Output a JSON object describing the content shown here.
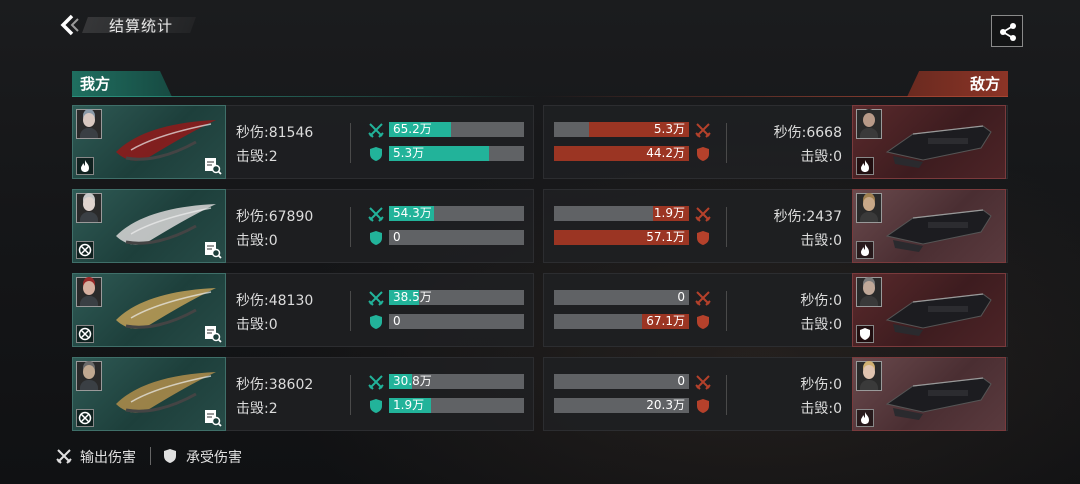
{
  "header": {
    "title": "结算统计"
  },
  "sides": {
    "ours": "我方",
    "enemy": "敌方"
  },
  "labels": {
    "dps_prefix": "秒伤:",
    "kills_prefix": "击毁:"
  },
  "colors": {
    "ally_accent": "#22b39a",
    "enemy_accent": "#9b3523",
    "bar_track": "#606265"
  },
  "rows": [
    {
      "ally": {
        "dps": "81546",
        "kills": "2",
        "dealt": "65.2万",
        "dealt_frac": 0.46,
        "taken": "5.3万",
        "taken_frac": 0.74,
        "portrait": "silver-hair-female",
        "role_icon": "flame-icon",
        "ship_color": "#8c1c1c"
      },
      "enemy": {
        "dps": "6668",
        "kills": "0",
        "dealt": "5.3万",
        "dealt_frac": 0.74,
        "taken": "44.2万",
        "taken_frac": 1.0,
        "portrait": "dark-hair-male",
        "role_icon": "flame-icon"
      }
    },
    {
      "ally": {
        "dps": "67890",
        "kills": "0",
        "dealt": "54.3万",
        "dealt_frac": 0.33,
        "taken": "0",
        "taken_frac": 0.0,
        "portrait": "white-hair-female",
        "role_icon": "target-icon",
        "ship_color": "#cfcfcf"
      },
      "enemy": {
        "dps": "2437",
        "kills": "0",
        "dealt": "1.9万",
        "dealt_frac": 0.27,
        "taken": "57.1万",
        "taken_frac": 1.0,
        "portrait": "blond-male",
        "role_icon": "flame-icon"
      }
    },
    {
      "ally": {
        "dps": "48130",
        "kills": "0",
        "dealt": "38.5万",
        "dealt_frac": 0.22,
        "taken": "0",
        "taken_frac": 0.0,
        "portrait": "red-hair-female",
        "role_icon": "target-icon",
        "ship_color": "#b89a55"
      },
      "enemy": {
        "dps": "0",
        "kills": "0",
        "dealt": "0",
        "dealt_frac": 0.0,
        "taken": "67.1万",
        "taken_frac": 0.35,
        "portrait": "gray-hair-male",
        "role_icon": "shield-icon"
      }
    },
    {
      "ally": {
        "dps": "38602",
        "kills": "2",
        "dealt": "30.8万",
        "dealt_frac": 0.17,
        "taken": "1.9万",
        "taken_frac": 0.31,
        "portrait": "gray-beard-male",
        "role_icon": "target-icon",
        "ship_color": "#a8894a"
      },
      "enemy": {
        "dps": "0",
        "kills": "0",
        "dealt": "0",
        "dealt_frac": 0.0,
        "taken": "20.3万",
        "taken_frac": 0.0,
        "portrait": "blond-female",
        "role_icon": "flame-icon"
      }
    }
  ],
  "legend": {
    "dealt": "输出伤害",
    "taken": "承受伤害"
  }
}
